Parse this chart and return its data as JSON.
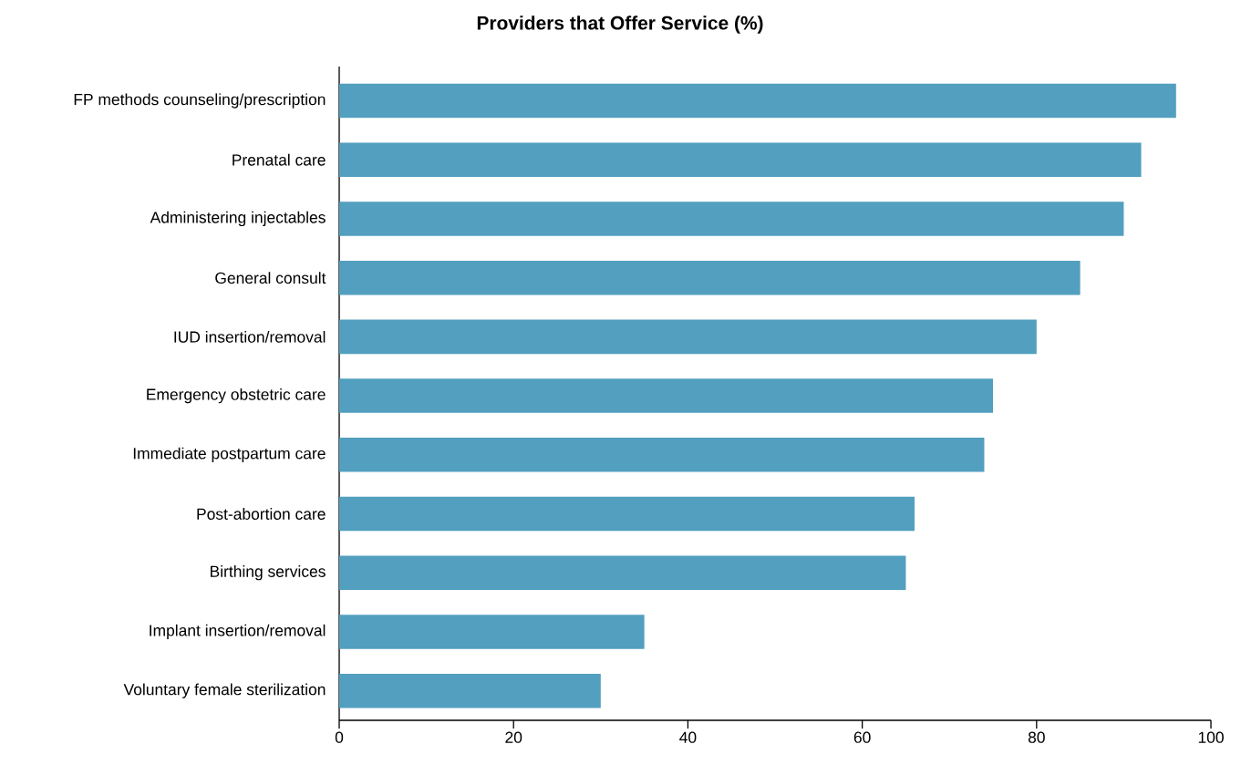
{
  "chart_data": {
    "type": "bar",
    "orientation": "horizontal",
    "title": "Providers that Offer Service (%)",
    "categories": [
      "FP methods counseling/prescription",
      "Prenatal care",
      "Administering injectables",
      "General consult",
      "IUD insertion/removal",
      "Emergency obstetric care",
      "Immediate postpartum care",
      "Post-abortion care",
      "Birthing services",
      "Implant insertion/removal",
      "Voluntary female sterilization"
    ],
    "values": [
      96,
      92,
      90,
      85,
      80,
      75,
      74,
      66,
      65,
      35,
      30
    ],
    "color": "#529fbf",
    "xlim": [
      0,
      100
    ],
    "xticks": [
      0,
      20,
      40,
      60,
      80,
      100
    ],
    "grid": false
  }
}
